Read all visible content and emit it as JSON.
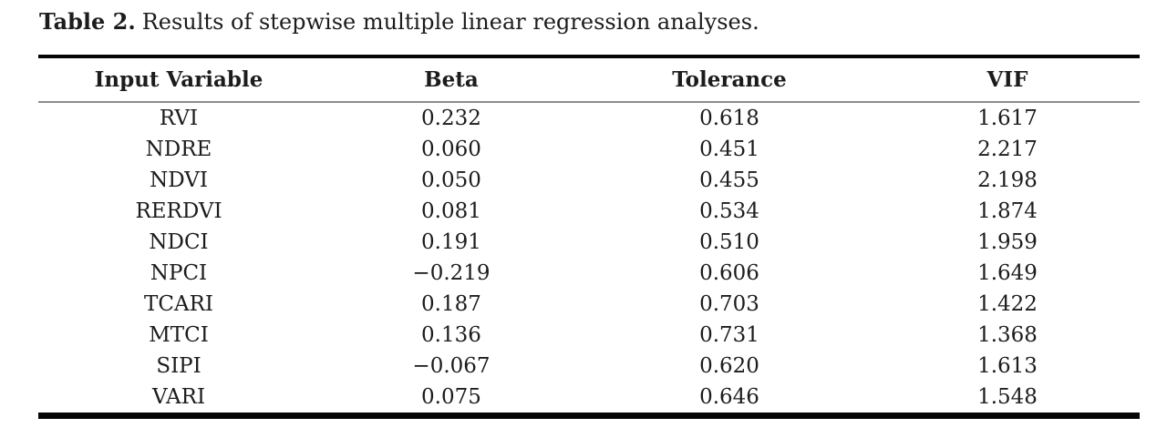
{
  "caption": {
    "label": "Table 2.",
    "text": "Results of stepwise multiple linear regression analyses."
  },
  "table": {
    "columns": [
      "Input Variable",
      "Beta",
      "Tolerance",
      "VIF"
    ],
    "column_keys": [
      "input-variable",
      "beta",
      "tolerance",
      "vif"
    ],
    "rows": [
      [
        "RVI",
        "0.232",
        "0.618",
        "1.617"
      ],
      [
        "NDRE",
        "0.060",
        "0.451",
        "2.217"
      ],
      [
        "NDVI",
        "0.050",
        "0.455",
        "2.198"
      ],
      [
        "RERDVI",
        "0.081",
        "0.534",
        "1.874"
      ],
      [
        "NDCI",
        "0.191",
        "0.510",
        "1.959"
      ],
      [
        "NPCI",
        "−0.219",
        "0.606",
        "1.649"
      ],
      [
        "TCARI",
        "0.187",
        "0.703",
        "1.422"
      ],
      [
        "MTCI",
        "0.136",
        "0.731",
        "1.368"
      ],
      [
        "SIPI",
        "−0.067",
        "0.620",
        "1.613"
      ],
      [
        "VARI",
        "0.075",
        "0.646",
        "1.548"
      ]
    ]
  },
  "colors": {
    "text": "#1c1c1c",
    "rule_heavy": "#050505",
    "rule_light": "#8c8c8c",
    "background": "#ffffff"
  }
}
